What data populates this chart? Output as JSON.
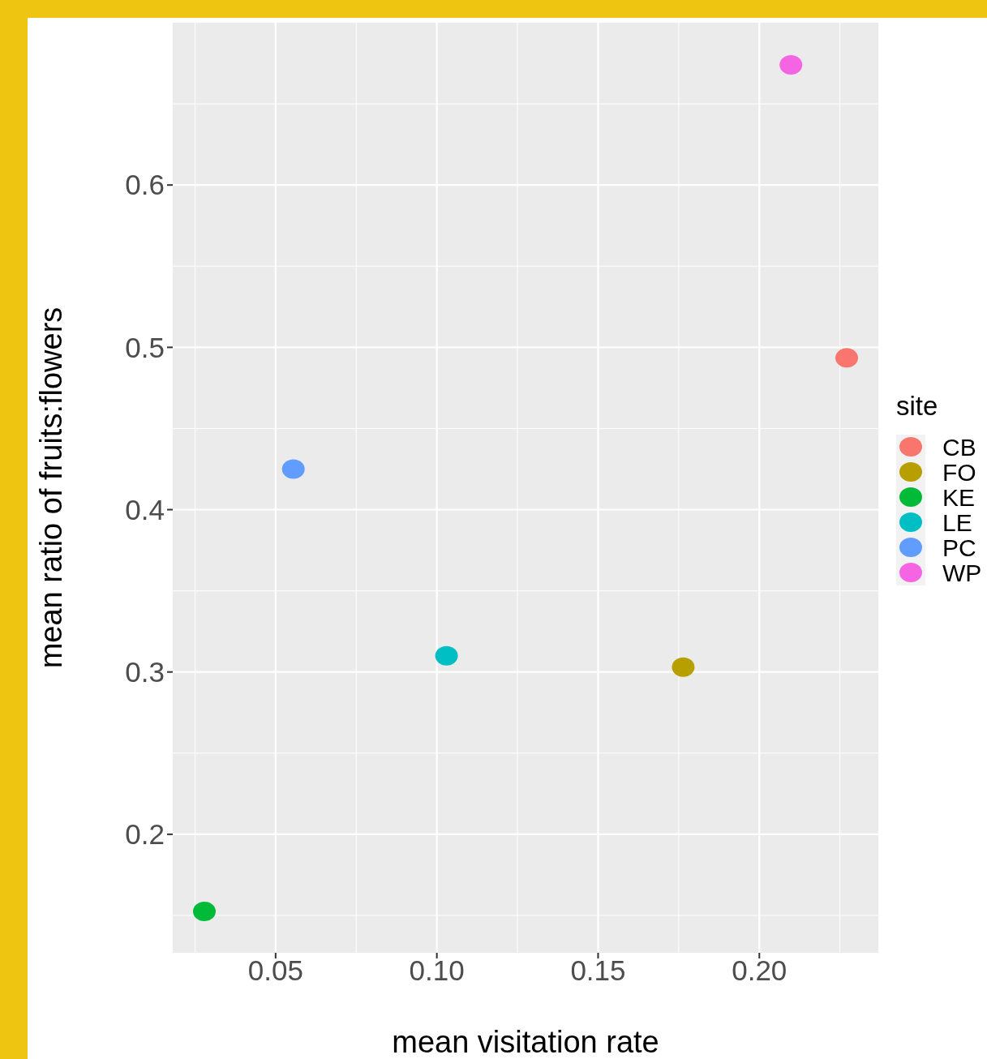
{
  "chart_data": {
    "type": "scatter",
    "xlabel": "mean visitation rate",
    "ylabel": "mean ratio of fruits:flowers",
    "legend_title": "site",
    "legend": "right",
    "grid": true,
    "marker": "circle",
    "xlim": [
      0.0181,
      0.2369
    ],
    "ylim": [
      0.127,
      0.7
    ],
    "xticks": [
      {
        "value": 0.05,
        "label": "0.05"
      },
      {
        "value": 0.1,
        "label": "0.10"
      },
      {
        "value": 0.15,
        "label": "0.15"
      },
      {
        "value": 0.2,
        "label": "0.20"
      }
    ],
    "yticks": [
      0.2,
      0.3,
      0.4,
      0.5,
      0.6
    ],
    "series": [
      {
        "name": "CB",
        "color": "#f8766d",
        "x": [
          0.2271
        ],
        "values": [
          0.4935
        ]
      },
      {
        "name": "FO",
        "color": "#b79f00",
        "x": [
          0.1764
        ],
        "values": [
          0.303
        ]
      },
      {
        "name": "KE",
        "color": "#00ba38",
        "x": [
          0.0279
        ],
        "values": [
          0.1525
        ]
      },
      {
        "name": "LE",
        "color": "#00bfc4",
        "x": [
          0.103
        ],
        "values": [
          0.31
        ]
      },
      {
        "name": "PC",
        "color": "#619cff",
        "x": [
          0.0555
        ],
        "values": [
          0.425
        ]
      },
      {
        "name": "WP",
        "color": "#f564e3",
        "x": [
          0.2098
        ],
        "values": [
          0.674
        ]
      }
    ]
  }
}
